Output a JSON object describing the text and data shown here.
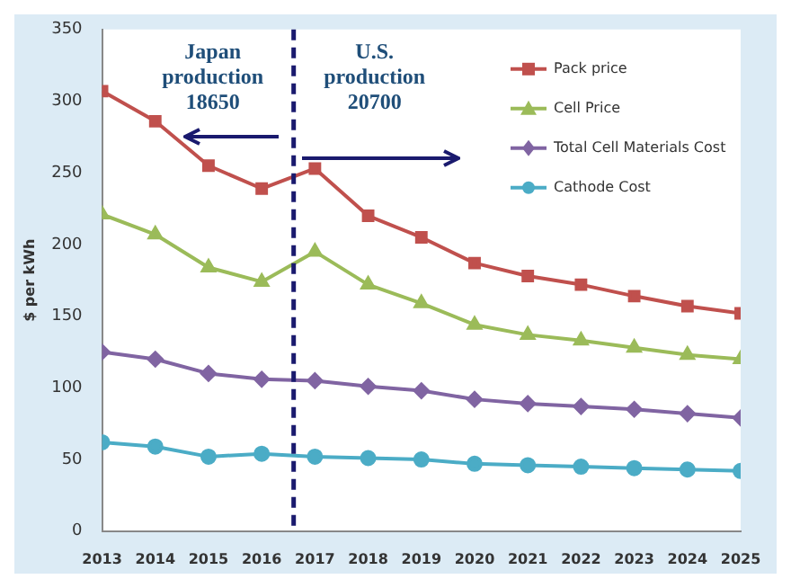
{
  "chart_data": {
    "type": "line",
    "ylabel": "$ per kWh",
    "x": [
      2013,
      2014,
      2015,
      2016,
      2017,
      2018,
      2019,
      2020,
      2021,
      2022,
      2023,
      2024,
      2025
    ],
    "xlim": [
      2013,
      2025
    ],
    "xticks": [
      2013,
      2014,
      2015,
      2016,
      2017,
      2018,
      2019,
      2020,
      2021,
      2022,
      2023,
      2024,
      2025
    ],
    "ylim": [
      0,
      350
    ],
    "yticks": [
      0,
      50,
      100,
      150,
      200,
      250,
      300,
      350
    ],
    "grid": false,
    "legend": "top right",
    "series": [
      {
        "name": "Pack price",
        "color": "#c0504d",
        "marker": "square",
        "values": [
          307,
          286,
          255,
          239,
          253,
          220,
          205,
          187,
          178,
          172,
          164,
          157,
          152
        ]
      },
      {
        "name": "Cell Price",
        "color": "#9bbb59",
        "marker": "triangle",
        "values": [
          221,
          207,
          184,
          174,
          195,
          172,
          159,
          144,
          137,
          133,
          128,
          123,
          120
        ]
      },
      {
        "name": "Total Cell Materials Cost",
        "color": "#8064a2",
        "marker": "diamond",
        "values": [
          125,
          120,
          110,
          106,
          105,
          101,
          98,
          92,
          89,
          87,
          85,
          82,
          79
        ]
      },
      {
        "name": "Cathode Cost",
        "color": "#4bacc6",
        "marker": "circle",
        "values": [
          62,
          59,
          52,
          54,
          52,
          51,
          50,
          47,
          46,
          45,
          44,
          43,
          42
        ]
      }
    ],
    "ref_lines": [
      {
        "axis": "x",
        "value": 2016.6,
        "color": "#1a1a6e",
        "line_style": "dashed"
      }
    ],
    "annotations": [
      "Japan\nproduction\n18650",
      "U.S.\nproduction\n20700"
    ]
  }
}
